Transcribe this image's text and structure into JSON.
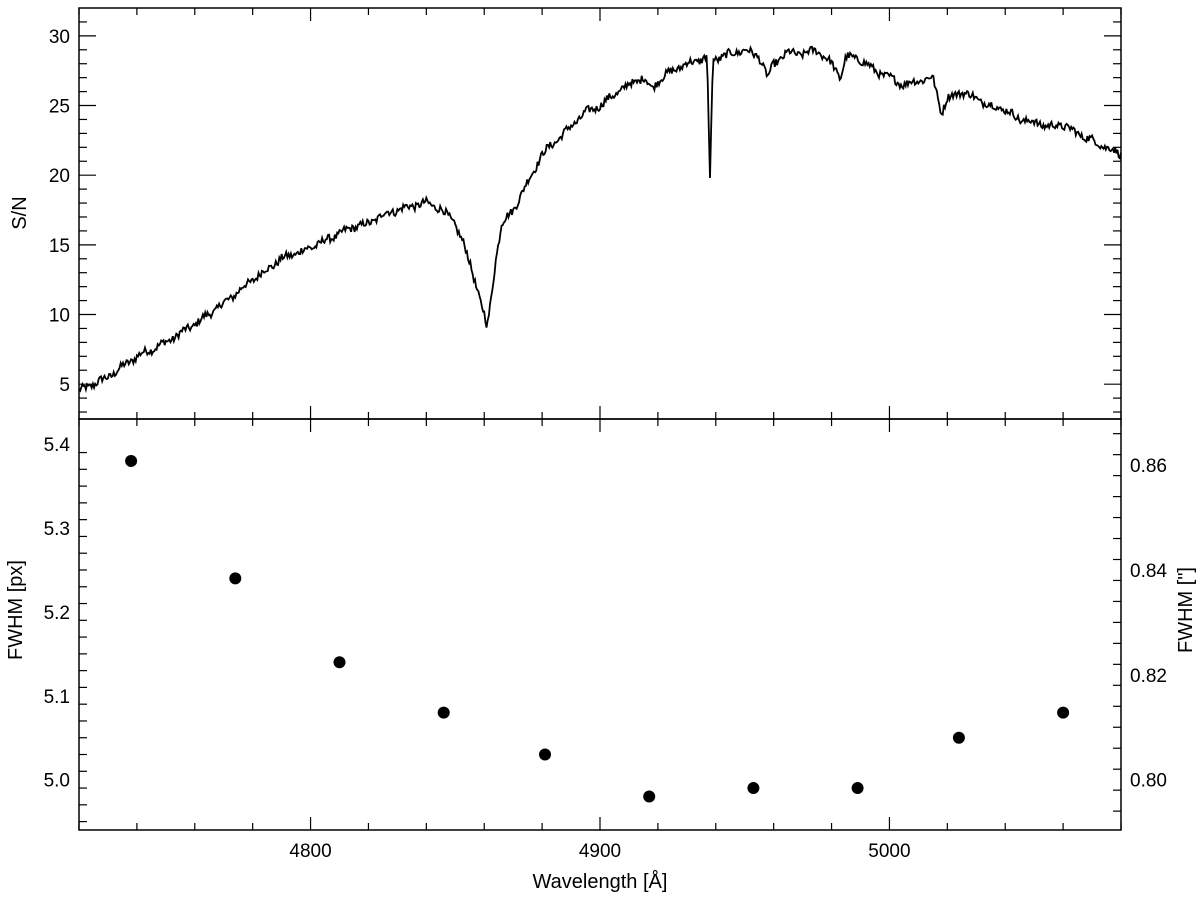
{
  "chart_data": [
    {
      "type": "line",
      "panel": "top",
      "ylabel": "S/N",
      "xlabel": "",
      "xlim": [
        4720,
        5080
      ],
      "ylim": [
        2.5,
        32
      ],
      "yticks": [
        5,
        10,
        15,
        20,
        25,
        30
      ],
      "ytick_labels": [
        "5",
        "10",
        "15",
        "20",
        "25",
        "30"
      ],
      "grid": false,
      "series": [
        {
          "color": "#000000",
          "x": [
            4720,
            4730,
            4740,
            4750,
            4760,
            4770,
            4780,
            4790,
            4800,
            4810,
            4815,
            4820,
            4825,
            4830,
            4835,
            4840,
            4845,
            4850,
            4853,
            4856,
            4858,
            4860,
            4861,
            4862,
            4864,
            4866,
            4868,
            4870,
            4875,
            4880,
            4885,
            4890,
            4895,
            4900,
            4905,
            4910,
            4915,
            4918,
            4920,
            4925,
            4930,
            4935,
            4937,
            4938,
            4939,
            4941,
            4945,
            4950,
            4955,
            4958,
            4960,
            4965,
            4970,
            4975,
            4980,
            4983,
            4985,
            4990,
            4995,
            5000,
            5005,
            5010,
            5015,
            5018,
            5020,
            5025,
            5030,
            5035,
            5040,
            5045,
            5050,
            5055,
            5060,
            5065,
            5070,
            5075,
            5080
          ],
          "y": [
            4.5,
            5.5,
            7.0,
            8.0,
            9.3,
            10.8,
            12.5,
            14.0,
            14.8,
            15.8,
            16.3,
            16.5,
            17.2,
            17.5,
            17.8,
            18.0,
            17.6,
            16.5,
            15.0,
            13.0,
            11.5,
            10.0,
            9.0,
            10.5,
            14.0,
            16.5,
            17.0,
            17.5,
            19.5,
            21.5,
            22.5,
            23.5,
            24.5,
            25.0,
            25.8,
            26.5,
            27.0,
            26.2,
            26.8,
            27.5,
            28.0,
            28.3,
            28.5,
            19.8,
            28.3,
            28.4,
            28.7,
            29.0,
            28.5,
            27.0,
            28.0,
            28.8,
            28.7,
            29.0,
            28.0,
            27.0,
            28.5,
            28.3,
            27.5,
            27.0,
            26.5,
            26.8,
            27.0,
            24.5,
            25.5,
            26.0,
            25.5,
            25.0,
            24.7,
            24.0,
            23.8,
            23.5,
            23.6,
            23.0,
            22.5,
            22.0,
            21.5
          ]
        }
      ]
    },
    {
      "type": "scatter",
      "panel": "bottom",
      "xlabel": "Wavelength [Å]",
      "ylabel": "FWHM [px]",
      "ylabel_right": "FWHM [\"]",
      "xlim": [
        4720,
        5080
      ],
      "xticks": [
        4800,
        4900,
        5000
      ],
      "xtick_labels": [
        "4800",
        "4900",
        "5000"
      ],
      "ylim": [
        4.94,
        5.43
      ],
      "yticks": [
        5.0,
        5.1,
        5.2,
        5.3,
        5.4
      ],
      "ytick_labels": [
        "5.0",
        "5.1",
        "5.2",
        "5.3",
        "5.4"
      ],
      "yticks_right": [
        0.8,
        0.82,
        0.84,
        0.86
      ],
      "ytick_labels_right": [
        "0.80",
        "0.82",
        "0.84",
        "0.86"
      ],
      "right_scale_factor": 0.16,
      "grid": false,
      "series": [
        {
          "color": "#000000",
          "x": [
            4738,
            4774,
            4810,
            4846,
            4881,
            4917,
            4953,
            4989,
            5024,
            5060
          ],
          "y": [
            5.38,
            5.24,
            5.14,
            5.08,
            5.03,
            4.98,
            4.99,
            4.99,
            5.05,
            5.08
          ]
        }
      ]
    }
  ]
}
